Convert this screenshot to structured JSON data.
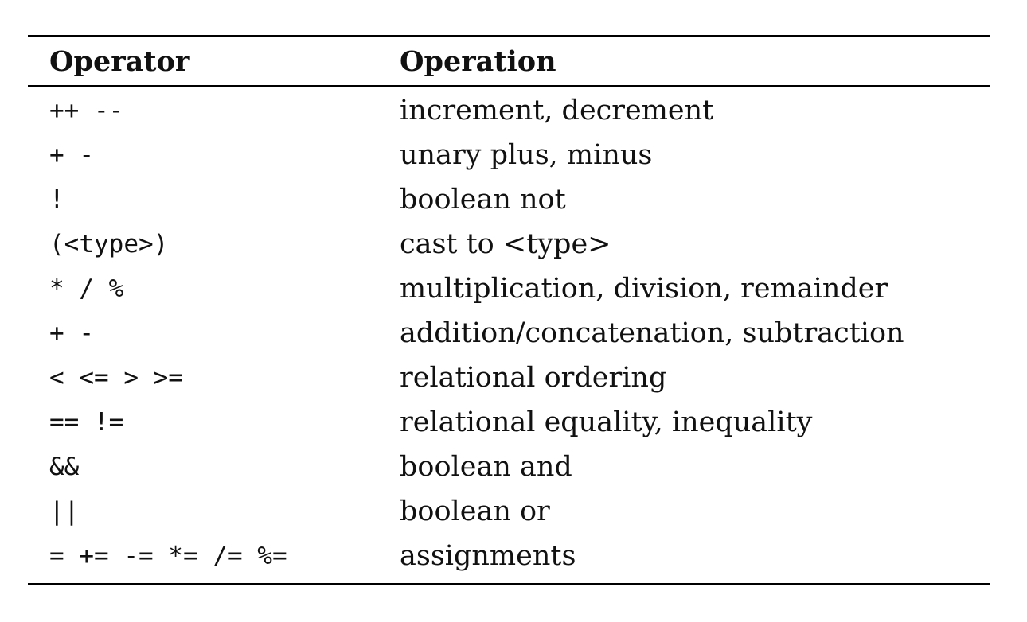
{
  "table": {
    "headers": {
      "operator": "Operator",
      "operation": "Operation"
    },
    "rows": [
      {
        "operator": "++ --",
        "operation": "increment, decrement"
      },
      {
        "operator": "+ -",
        "operation": "unary plus, minus"
      },
      {
        "operator": "!",
        "operation": "boolean not"
      },
      {
        "operator": "(<type>)",
        "operation": "cast to <type>"
      },
      {
        "operator": "* / %",
        "operation": "multiplication, division, remainder"
      },
      {
        "operator": "+ -",
        "operation": "addition/concatenation, subtraction"
      },
      {
        "operator": "< <= > >=",
        "operation": "relational ordering"
      },
      {
        "operator": "== !=",
        "operation": "relational equality, inequality"
      },
      {
        "operator": "&&",
        "operation": "boolean and"
      },
      {
        "operator": "||",
        "operation": "boolean or"
      },
      {
        "operator": "= += -= *= /= %=",
        "operation": "assignments"
      }
    ]
  }
}
